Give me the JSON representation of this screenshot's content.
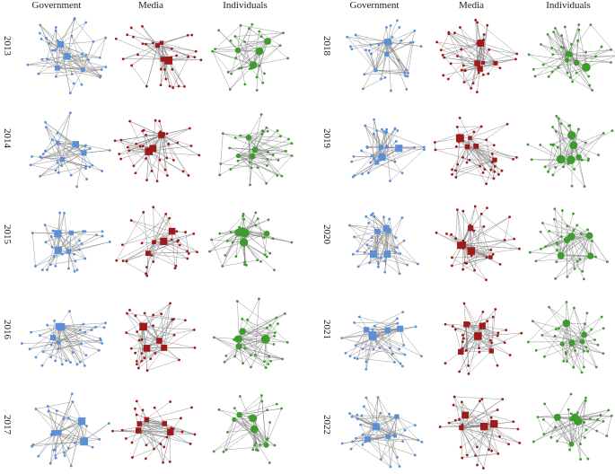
{
  "headers": {
    "left": [
      "Government",
      "Media",
      "Individuals"
    ],
    "right": [
      "Government",
      "Media",
      "Individuals"
    ]
  },
  "years": {
    "left": [
      "2013",
      "2014",
      "2015",
      "2016",
      "2017"
    ],
    "right": [
      "2018",
      "2019",
      "2020",
      "2021",
      "2022"
    ]
  },
  "colors": {
    "government": "#5b8fd6",
    "media": "#9c1b1b",
    "individuals": "#3f9a2f",
    "edge": "#8c8c8c"
  },
  "node_shapes": {
    "hub": "square",
    "regular": "circle"
  }
}
